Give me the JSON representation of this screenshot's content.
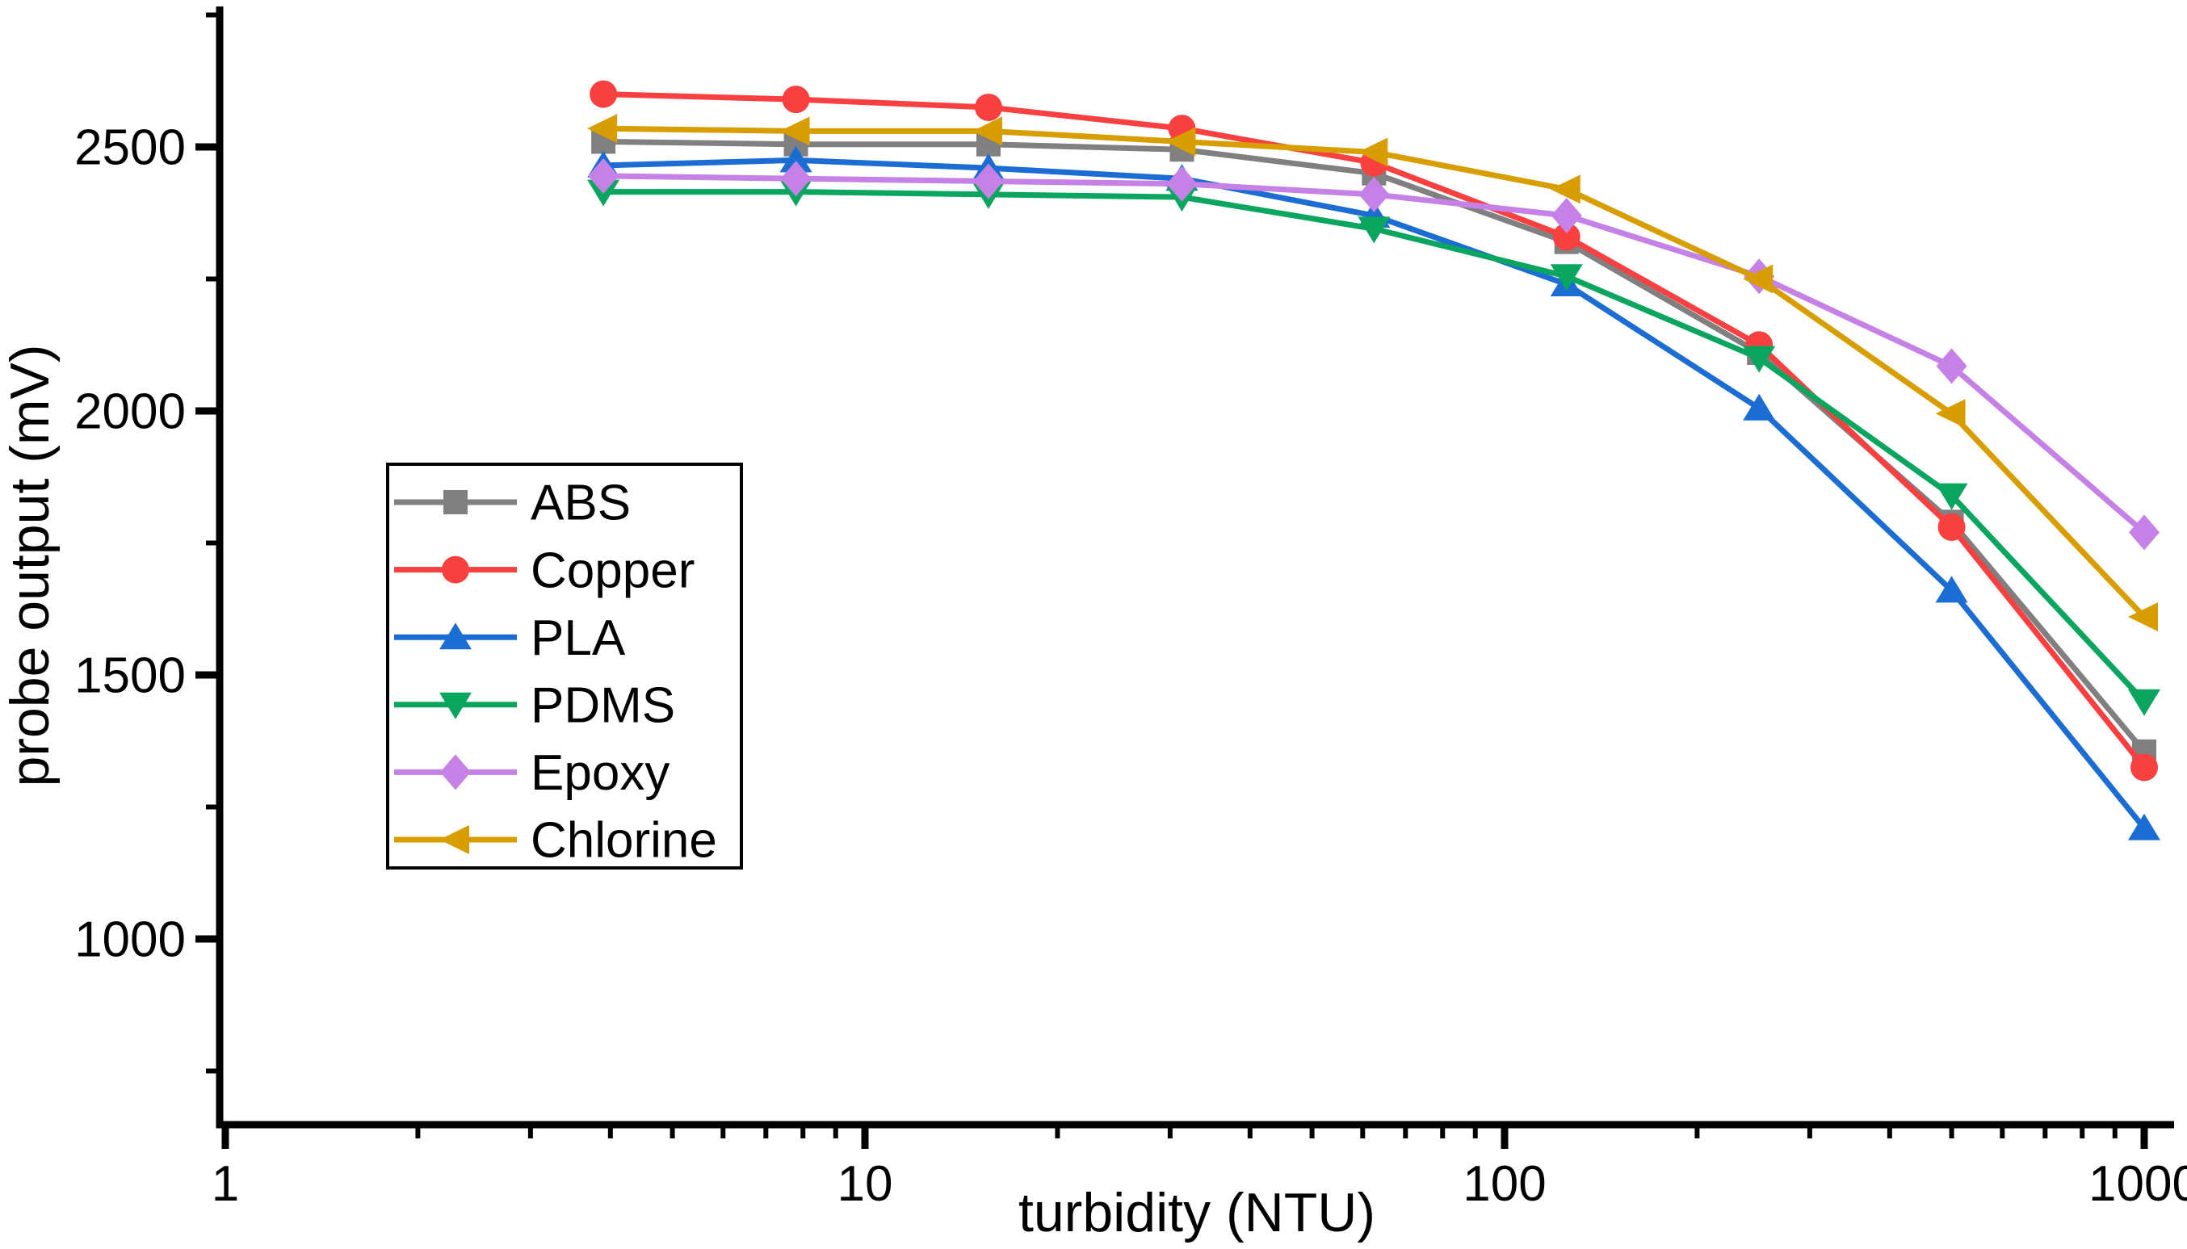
{
  "chart_data": {
    "type": "line",
    "title": "",
    "xlabel": "turbidity (NTU)",
    "ylabel": "probe output (mV)",
    "x_scale": "log",
    "grid": false,
    "x": [
      3.9,
      7.8,
      15.6,
      31.3,
      62.5,
      125,
      250,
      500,
      1000
    ],
    "x_axis": {
      "min": 1,
      "max": 1080,
      "major_ticks": [
        1,
        10,
        100,
        1000
      ],
      "tick_labels": [
        "1",
        "10",
        "100",
        "1000"
      ]
    },
    "y_axis": {
      "min": 650,
      "max": 2770,
      "major_ticks": [
        1000,
        1500,
        2000,
        2500
      ],
      "tick_labels": [
        "1000",
        "1500",
        "2000",
        "2500"
      ],
      "minor_ticks": [
        750,
        1250,
        1750,
        2250,
        2750
      ]
    },
    "legend": {
      "position": "middle-left",
      "entries": [
        "ABS",
        "Copper",
        "PLA",
        "PDMS",
        "Epoxy",
        "Chlorine"
      ]
    },
    "series": [
      {
        "name": "ABS",
        "color": "#808080",
        "marker": "square",
        "values": [
          2510,
          2505,
          2505,
          2495,
          2450,
          2320,
          2110,
          1790,
          1355
        ]
      },
      {
        "name": "Copper",
        "color": "#F84040",
        "marker": "circle",
        "values": [
          2600,
          2590,
          2575,
          2535,
          2470,
          2330,
          2125,
          1780,
          1325
        ]
      },
      {
        "name": "PLA",
        "color": "#1B6DD4",
        "marker": "triangle-up",
        "values": [
          2465,
          2475,
          2460,
          2440,
          2370,
          2240,
          2005,
          1660,
          1210
        ]
      },
      {
        "name": "PDMS",
        "color": "#0AA660",
        "marker": "triangle-down",
        "values": [
          2415,
          2415,
          2410,
          2405,
          2345,
          2255,
          2100,
          1840,
          1450
        ]
      },
      {
        "name": "Epoxy",
        "color": "#C581E5",
        "marker": "diamond",
        "values": [
          2445,
          2440,
          2435,
          2430,
          2410,
          2370,
          2255,
          2085,
          1770
        ]
      },
      {
        "name": "Chlorine",
        "color": "#D89E00",
        "marker": "triangle-left",
        "values": [
          2535,
          2530,
          2530,
          2510,
          2490,
          2420,
          2250,
          1995,
          1610
        ]
      }
    ],
    "axis_color": "#000000"
  }
}
